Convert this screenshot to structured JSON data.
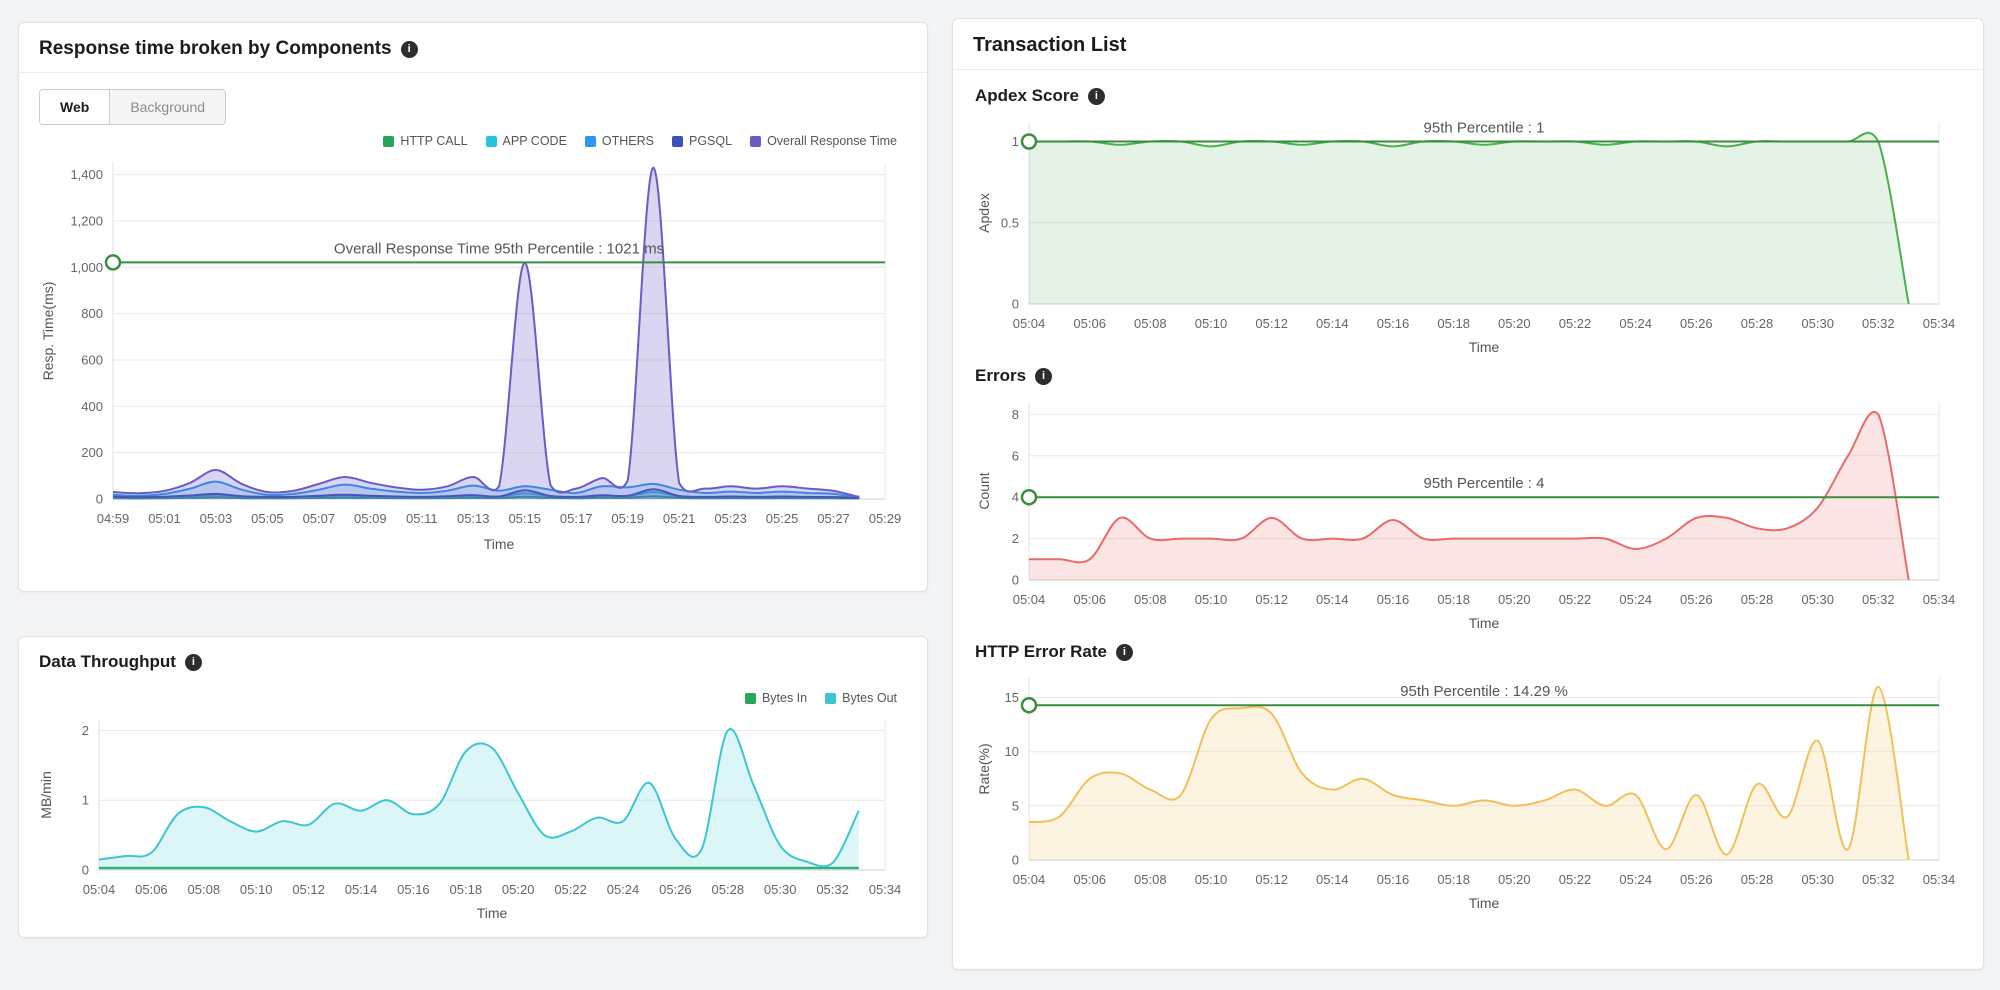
{
  "icons": {
    "info": "i"
  },
  "cards": {
    "response": {
      "title": "Response time broken by Components",
      "tabs": [
        {
          "label": "Web",
          "active": true
        },
        {
          "label": "Background",
          "active": false
        }
      ]
    },
    "throughput": {
      "title": "Data Throughput"
    },
    "transactions": {
      "title": "Transaction List",
      "sections": [
        {
          "title": "Apdex Score"
        },
        {
          "title": "Errors"
        },
        {
          "title": "HTTP Error Rate"
        }
      ]
    }
  },
  "chart_data": {
    "response": {
      "type": "area",
      "title": "Response time broken by Components",
      "xlabel": "Time",
      "ylabel": "Resp. Time(ms)",
      "x_range": [
        0,
        30
      ],
      "x_step": 1,
      "x_ticks": [
        "04:59",
        "05:01",
        "05:03",
        "05:05",
        "05:07",
        "05:09",
        "05:11",
        "05:13",
        "05:15",
        "05:17",
        "05:19",
        "05:21",
        "05:23",
        "05:25",
        "05:27",
        "05:29"
      ],
      "y_range": [
        0,
        1450
      ],
      "y_ticks": [
        0,
        200,
        400,
        600,
        800,
        1000,
        1200,
        1400
      ],
      "y_tick_labels": [
        "0",
        "200",
        "400",
        "600",
        "800",
        "1,000",
        "1,200",
        "1,400"
      ],
      "threshold": {
        "value": 1021,
        "label": "Overall Response Time 95th Percentile : 1021 ms",
        "color": "#388e3c"
      },
      "legend": [
        {
          "name": "HTTP CALL",
          "color": "#27a65a"
        },
        {
          "name": "APP CODE",
          "color": "#26c6da"
        },
        {
          "name": "OTHERS",
          "color": "#2d96f0"
        },
        {
          "name": "PGSQL",
          "color": "#3d52b8"
        },
        {
          "name": "Overall Response Time",
          "color": "#6a5bc7"
        }
      ],
      "series": [
        {
          "name": "HTTP CALL",
          "color": "#27a65a",
          "fill_opacity": 0.2,
          "values": [
            3,
            2,
            3,
            5,
            8,
            4,
            3,
            3,
            5,
            6,
            5,
            4,
            3,
            4,
            6,
            4,
            10,
            5,
            3,
            6,
            5,
            12,
            5,
            3,
            4,
            3,
            4,
            3,
            3,
            2
          ]
        },
        {
          "name": "APP CODE",
          "color": "#26c6da",
          "fill_opacity": 0.2,
          "values": [
            8,
            6,
            8,
            12,
            18,
            10,
            8,
            8,
            12,
            15,
            12,
            10,
            8,
            10,
            14,
            10,
            25,
            12,
            8,
            14,
            12,
            30,
            12,
            8,
            10,
            8,
            10,
            8,
            8,
            12
          ]
        },
        {
          "name": "OTHERS",
          "color": "#2d96f0",
          "fill_opacity": 0.2,
          "values": [
            18,
            14,
            22,
            45,
            75,
            40,
            18,
            22,
            40,
            62,
            45,
            32,
            26,
            36,
            58,
            36,
            55,
            40,
            26,
            55,
            50,
            65,
            40,
            26,
            32,
            26,
            32,
            26,
            22,
            6
          ]
        },
        {
          "name": "PGSQL",
          "color": "#3d52b8",
          "fill_opacity": 0.2,
          "values": [
            10,
            8,
            10,
            15,
            22,
            12,
            9,
            9,
            14,
            18,
            14,
            11,
            9,
            12,
            17,
            11,
            38,
            13,
            9,
            16,
            14,
            42,
            13,
            9,
            11,
            9,
            11,
            9,
            8,
            3
          ]
        },
        {
          "name": "Overall Response Time",
          "color": "#6a5bc7",
          "fill_opacity": 0.25,
          "values": [
            30,
            25,
            35,
            70,
            125,
            65,
            30,
            35,
            65,
            95,
            70,
            50,
            40,
            55,
            95,
            55,
            1020,
            60,
            45,
            90,
            80,
            1430,
            70,
            45,
            55,
            45,
            55,
            45,
            35,
            8
          ]
        }
      ]
    },
    "throughput": {
      "type": "area",
      "title": "Data Throughput",
      "xlabel": "Time",
      "ylabel": "MB/min",
      "x_range": [
        0,
        30
      ],
      "x_step": 1,
      "x_ticks": [
        "05:04",
        "05:06",
        "05:08",
        "05:10",
        "05:12",
        "05:14",
        "05:16",
        "05:18",
        "05:20",
        "05:22",
        "05:24",
        "05:26",
        "05:28",
        "05:30",
        "05:32",
        "05:34"
      ],
      "y_range": [
        0,
        2.15
      ],
      "y_ticks": [
        0,
        1,
        2
      ],
      "legend": [
        {
          "name": "Bytes In",
          "color": "#27a65a"
        },
        {
          "name": "Bytes Out",
          "color": "#3ec6d0"
        }
      ],
      "series": [
        {
          "name": "Bytes In",
          "color": "#27a65a",
          "fill_opacity": 0.18,
          "values": [
            0.03,
            0.03,
            0.03,
            0.03,
            0.03,
            0.03,
            0.03,
            0.03,
            0.03,
            0.03,
            0.03,
            0.03,
            0.03,
            0.03,
            0.03,
            0.03,
            0.03,
            0.03,
            0.03,
            0.03,
            0.03,
            0.03,
            0.03,
            0.03,
            0.03,
            0.03,
            0.03,
            0.03,
            0.03,
            0.03
          ]
        },
        {
          "name": "Bytes Out",
          "color": "#3ec6d0",
          "fill_opacity": 0.18,
          "values": [
            0.15,
            0.2,
            0.25,
            0.8,
            0.9,
            0.7,
            0.55,
            0.7,
            0.65,
            0.95,
            0.85,
            1.0,
            0.8,
            0.95,
            1.7,
            1.75,
            1.1,
            0.5,
            0.55,
            0.75,
            0.7,
            1.25,
            0.45,
            0.3,
            2.0,
            1.2,
            0.35,
            0.12,
            0.1,
            0.85
          ]
        }
      ]
    },
    "apdex": {
      "type": "area",
      "title": "Apdex Score",
      "xlabel": "Time",
      "ylabel": "Apdex",
      "x_range": [
        0,
        30
      ],
      "x_step": 1,
      "x_ticks": [
        "05:04",
        "05:06",
        "05:08",
        "05:10",
        "05:12",
        "05:14",
        "05:16",
        "05:18",
        "05:20",
        "05:22",
        "05:24",
        "05:26",
        "05:28",
        "05:30",
        "05:32",
        "05:34"
      ],
      "y_range": [
        0,
        1.12
      ],
      "y_ticks": [
        0,
        0.5,
        1
      ],
      "threshold": {
        "value": 1,
        "label": "95th Percentile : 1",
        "color": "#388e3c"
      },
      "series": [
        {
          "name": "Apdex",
          "color": "#4caf50",
          "fill_opacity": 0.15,
          "values": [
            1,
            1,
            1,
            0.98,
            1,
            1,
            0.97,
            1,
            1,
            0.98,
            1,
            1,
            0.97,
            1,
            1,
            0.98,
            1,
            1,
            1,
            0.98,
            1,
            1,
            1,
            0.97,
            1,
            1,
            1,
            1,
            1,
            0
          ]
        }
      ]
    },
    "errors": {
      "type": "area",
      "title": "Errors",
      "xlabel": "Time",
      "ylabel": "Count",
      "x_range": [
        0,
        30
      ],
      "x_step": 1,
      "x_ticks": [
        "05:04",
        "05:06",
        "05:08",
        "05:10",
        "05:12",
        "05:14",
        "05:16",
        "05:18",
        "05:20",
        "05:22",
        "05:24",
        "05:26",
        "05:28",
        "05:30",
        "05:32",
        "05:34"
      ],
      "y_range": [
        0,
        8.6
      ],
      "y_ticks": [
        0,
        2,
        4,
        6,
        8
      ],
      "threshold": {
        "value": 4,
        "label": "95th Percentile : 4",
        "color": "#388e3c"
      },
      "series": [
        {
          "name": "Errors",
          "color": "#e96a6a",
          "fill_opacity": 0.18,
          "values": [
            1,
            1,
            1,
            3,
            2,
            2,
            2,
            2,
            3,
            2,
            2,
            2,
            2.9,
            2,
            2,
            2,
            2,
            2,
            2,
            2,
            1.5,
            2,
            3,
            3,
            2.5,
            2.5,
            3.5,
            6,
            8,
            0
          ]
        }
      ]
    },
    "http": {
      "type": "area",
      "title": "HTTP Error Rate",
      "xlabel": "Time",
      "ylabel": "Rate(%)",
      "x_range": [
        0,
        30
      ],
      "x_step": 1,
      "x_ticks": [
        "05:04",
        "05:06",
        "05:08",
        "05:10",
        "05:12",
        "05:14",
        "05:16",
        "05:18",
        "05:20",
        "05:22",
        "05:24",
        "05:26",
        "05:28",
        "05:30",
        "05:32",
        "05:34"
      ],
      "y_range": [
        0,
        16.8
      ],
      "y_ticks": [
        0,
        5,
        10,
        15
      ],
      "threshold": {
        "value": 14.29,
        "label": "95th Percentile : 14.29 %",
        "color": "#388e3c"
      },
      "series": [
        {
          "name": "HTTP Error Rate",
          "color": "#f0c05a",
          "fill_opacity": 0.18,
          "values": [
            3.5,
            4,
            7.5,
            8,
            6.5,
            6,
            13,
            14,
            13.5,
            8,
            6.5,
            7.5,
            6,
            5.5,
            5,
            5.5,
            5,
            5.5,
            6.5,
            5,
            6,
            1,
            6,
            0.5,
            7,
            4,
            11,
            1,
            16,
            0
          ]
        }
      ]
    }
  }
}
